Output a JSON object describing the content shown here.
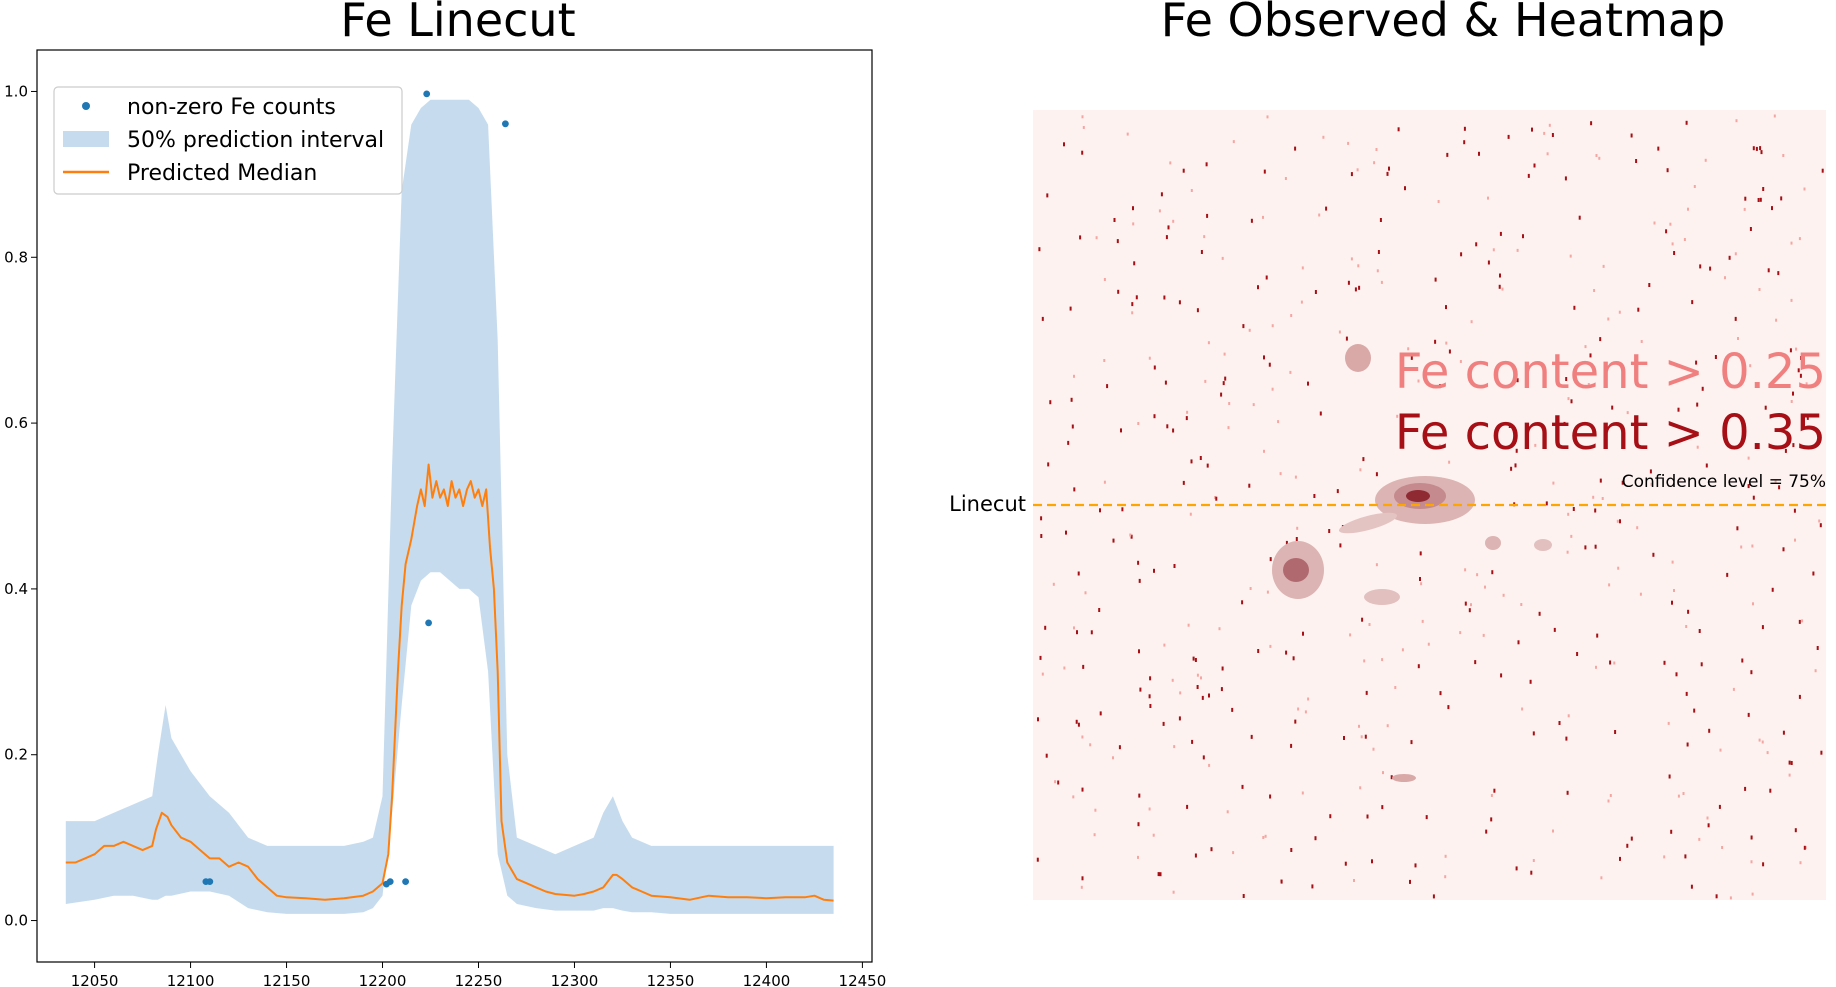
{
  "chart_data": [
    {
      "type": "line",
      "title": "Fe Linecut",
      "xlabel": "",
      "ylabel": "",
      "xlim": [
        12020,
        12455
      ],
      "ylim": [
        -0.05,
        1.05
      ],
      "x_ticks": [
        12050,
        12100,
        12150,
        12200,
        12250,
        12300,
        12350,
        12400,
        12450
      ],
      "y_ticks": [
        0.0,
        0.2,
        0.4,
        0.6,
        0.8,
        1.0
      ],
      "y_tick_labels": [
        "0.0",
        "0.2",
        "0.4",
        "0.6",
        "0.8",
        "1.0"
      ],
      "grid": false,
      "legend_position": "top-left",
      "legend": [
        "non-zero Fe counts",
        "50% prediction interval",
        "Predicted Median"
      ],
      "colors": {
        "points": "#1f77b4",
        "interval": "#c6dcee",
        "median": "#ff7f0e"
      },
      "series": [
        {
          "name": "non-zero Fe counts",
          "kind": "scatter",
          "x": [
            12108,
            12110,
            12202,
            12204,
            12212,
            12223,
            12224,
            12264
          ],
          "y": [
            0.047,
            0.047,
            0.044,
            0.047,
            0.047,
            0.997,
            0.359,
            0.961
          ]
        },
        {
          "name": "50% prediction interval",
          "kind": "band",
          "x": [
            12035,
            12050,
            12060,
            12070,
            12080,
            12083,
            12087,
            12090,
            12100,
            12110,
            12120,
            12130,
            12140,
            12150,
            12160,
            12170,
            12180,
            12190,
            12195,
            12200,
            12205,
            12210,
            12215,
            12220,
            12225,
            12230,
            12240,
            12245,
            12250,
            12255,
            12260,
            12265,
            12270,
            12280,
            12290,
            12300,
            12310,
            12315,
            12320,
            12325,
            12330,
            12340,
            12350,
            12360,
            12380,
            12400,
            12420,
            12435
          ],
          "lower": [
            0.02,
            0.025,
            0.03,
            0.03,
            0.025,
            0.025,
            0.03,
            0.03,
            0.035,
            0.035,
            0.03,
            0.015,
            0.01,
            0.008,
            0.008,
            0.008,
            0.008,
            0.01,
            0.015,
            0.03,
            0.13,
            0.26,
            0.38,
            0.41,
            0.42,
            0.42,
            0.4,
            0.4,
            0.39,
            0.3,
            0.08,
            0.03,
            0.02,
            0.015,
            0.012,
            0.012,
            0.012,
            0.015,
            0.015,
            0.012,
            0.01,
            0.01,
            0.008,
            0.008,
            0.008,
            0.008,
            0.008,
            0.008
          ],
          "upper": [
            0.12,
            0.12,
            0.13,
            0.14,
            0.15,
            0.2,
            0.26,
            0.22,
            0.18,
            0.15,
            0.13,
            0.1,
            0.09,
            0.09,
            0.09,
            0.09,
            0.09,
            0.095,
            0.1,
            0.15,
            0.55,
            0.88,
            0.96,
            0.98,
            0.99,
            0.99,
            0.99,
            0.99,
            0.98,
            0.96,
            0.7,
            0.2,
            0.1,
            0.09,
            0.08,
            0.09,
            0.1,
            0.13,
            0.15,
            0.12,
            0.1,
            0.09,
            0.09,
            0.09,
            0.09,
            0.09,
            0.09,
            0.09
          ]
        },
        {
          "name": "Predicted Median",
          "kind": "line",
          "x": [
            12035,
            12040,
            12045,
            12050,
            12055,
            12060,
            12065,
            12070,
            12075,
            12080,
            12082,
            12085,
            12088,
            12090,
            12095,
            12100,
            12105,
            12110,
            12115,
            12120,
            12125,
            12130,
            12135,
            12140,
            12145,
            12150,
            12160,
            12170,
            12180,
            12190,
            12195,
            12200,
            12203,
            12205,
            12208,
            12210,
            12212,
            12215,
            12218,
            12220,
            12222,
            12224,
            12226,
            12228,
            12230,
            12232,
            12234,
            12236,
            12238,
            12240,
            12242,
            12244,
            12246,
            12248,
            12250,
            12252,
            12254,
            12256,
            12258,
            12260,
            12262,
            12265,
            12270,
            12275,
            12280,
            12285,
            12290,
            12300,
            12305,
            12310,
            12315,
            12320,
            12322,
            12325,
            12330,
            12335,
            12340,
            12350,
            12360,
            12370,
            12380,
            12390,
            12400,
            12410,
            12420,
            12425,
            12430,
            12435
          ],
          "y": [
            0.07,
            0.07,
            0.075,
            0.08,
            0.09,
            0.09,
            0.095,
            0.09,
            0.085,
            0.09,
            0.11,
            0.13,
            0.125,
            0.115,
            0.1,
            0.095,
            0.085,
            0.075,
            0.075,
            0.065,
            0.07,
            0.065,
            0.05,
            0.04,
            0.03,
            0.028,
            0.027,
            0.025,
            0.027,
            0.03,
            0.035,
            0.045,
            0.08,
            0.15,
            0.3,
            0.38,
            0.43,
            0.46,
            0.5,
            0.52,
            0.5,
            0.55,
            0.51,
            0.53,
            0.51,
            0.52,
            0.5,
            0.53,
            0.51,
            0.52,
            0.5,
            0.52,
            0.53,
            0.51,
            0.52,
            0.5,
            0.52,
            0.45,
            0.4,
            0.3,
            0.12,
            0.07,
            0.05,
            0.045,
            0.04,
            0.035,
            0.032,
            0.03,
            0.032,
            0.035,
            0.04,
            0.055,
            0.055,
            0.05,
            0.04,
            0.035,
            0.03,
            0.028,
            0.025,
            0.03,
            0.028,
            0.028,
            0.027,
            0.028,
            0.028,
            0.03,
            0.025,
            0.024
          ]
        }
      ]
    },
    {
      "type": "heatmap",
      "title": "Fe Observed & Heatmap",
      "colors": {
        "background": "#fdf2ef",
        "light": "#f4a6a3",
        "dark": "#a50f15",
        "linecut": "#ffa500"
      },
      "labels": {
        "threshold_low": "Fe content > 0.25",
        "threshold_high": "Fe content > 0.35",
        "confidence": "Confidence level = 75%",
        "linecut": "Linecut"
      },
      "linecut_row_fraction": 0.5
    }
  ]
}
